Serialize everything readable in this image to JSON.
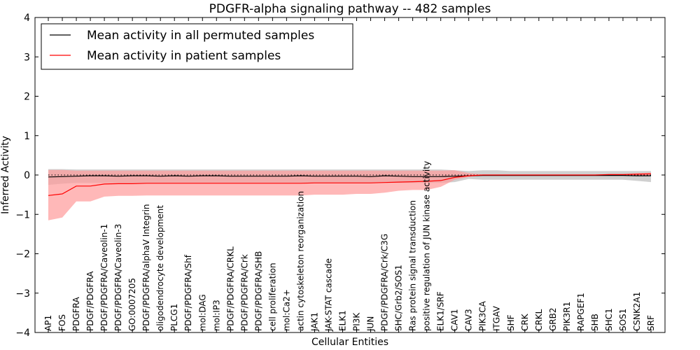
{
  "chart_data": {
    "type": "line",
    "title": "PDGFR-alpha signaling pathway -- 482 samples",
    "xlabel": "Cellular Entities",
    "ylabel": "Inferred Activity",
    "ylim": [
      -4,
      4
    ],
    "yticks": [
      -4,
      -3,
      -2,
      -1,
      0,
      1,
      2,
      3,
      4
    ],
    "ytick_labels": [
      "−4",
      "−3",
      "−2",
      "−1",
      "0",
      "1",
      "2",
      "3",
      "4"
    ],
    "grid": false,
    "legend_position": "top-left",
    "reference_line": {
      "y": 0,
      "style": "dotted"
    },
    "categories": [
      "AP1",
      "FOS",
      "PDGFRA",
      "PDGF/PDGFRA",
      "PDGF/PDGFRA/Caveolin-1",
      "PDGF/PDGFRA/Caveolin-3",
      "GO:0007205",
      "PDGF/PDGFRA/alphaV Integrin",
      "oligodendrocyte development",
      "PLCG1",
      "PDGF/PDGFRA/Shf",
      "mol:DAG",
      "mol:IP3",
      "PDGF/PDGFRA/CRKL",
      "PDGF/PDGFRA/Crk",
      "PDGF/PDGFRA/SHB",
      "cell proliferation",
      "mol:Ca2+",
      "actin cytoskeleton reorganization",
      "JAK1",
      "JAK-STAT cascade",
      "ELK1",
      "PI3K",
      "JUN",
      "PDGF/PDGFRA/Crk/C3G",
      "SHC/Grb2/SOS1",
      "Ras protein signal transduction",
      "positive regulation of JUN kinase activity",
      "ELK1/SRF",
      "CAV1",
      "CAV3",
      "PIK3CA",
      "ITGAV",
      "SHF",
      "CRK",
      "CRKL",
      "GRB2",
      "PIK3R1",
      "RAPGEF1",
      "SHB",
      "SHC1",
      "SOS1",
      "CSNK2A1",
      "SRF"
    ],
    "series": [
      {
        "name": "Mean activity in all permuted samples",
        "color": "#000000",
        "band_color": "#b0b0b0",
        "values": [
          -0.05,
          -0.04,
          -0.03,
          -0.02,
          -0.02,
          -0.03,
          -0.02,
          -0.02,
          -0.03,
          -0.02,
          -0.03,
          -0.02,
          -0.02,
          -0.03,
          -0.03,
          -0.03,
          -0.03,
          -0.03,
          -0.02,
          -0.03,
          -0.03,
          -0.03,
          -0.03,
          -0.04,
          -0.02,
          -0.03,
          -0.04,
          -0.04,
          -0.04,
          -0.03,
          -0.02,
          -0.01,
          -0.01,
          -0.01,
          -0.01,
          -0.01,
          -0.01,
          -0.01,
          -0.01,
          -0.01,
          -0.01,
          -0.01,
          -0.02,
          -0.02
        ],
        "lower": [
          -0.25,
          -0.22,
          -0.2,
          -0.2,
          -0.2,
          -0.2,
          -0.2,
          -0.2,
          -0.2,
          -0.2,
          -0.2,
          -0.2,
          -0.2,
          -0.2,
          -0.2,
          -0.2,
          -0.2,
          -0.2,
          -0.2,
          -0.2,
          -0.2,
          -0.2,
          -0.2,
          -0.2,
          -0.2,
          -0.2,
          -0.2,
          -0.2,
          -0.2,
          -0.18,
          -0.1,
          -0.12,
          -0.12,
          -0.12,
          -0.12,
          -0.12,
          -0.12,
          -0.12,
          -0.12,
          -0.12,
          -0.12,
          -0.12,
          -0.15,
          -0.18
        ],
        "upper": [
          0.15,
          0.15,
          0.14,
          0.14,
          0.14,
          0.14,
          0.14,
          0.14,
          0.14,
          0.14,
          0.14,
          0.14,
          0.14,
          0.14,
          0.14,
          0.14,
          0.14,
          0.14,
          0.14,
          0.14,
          0.14,
          0.14,
          0.14,
          0.14,
          0.14,
          0.14,
          0.14,
          0.14,
          0.14,
          0.12,
          0.1,
          0.12,
          0.12,
          0.1,
          0.1,
          0.1,
          0.1,
          0.1,
          0.1,
          0.1,
          0.1,
          0.1,
          0.1,
          0.1
        ]
      },
      {
        "name": "Mean activity in patient samples",
        "color": "#ff0000",
        "band_color": "#ff9a9a",
        "values": [
          -0.52,
          -0.48,
          -0.28,
          -0.28,
          -0.23,
          -0.22,
          -0.22,
          -0.21,
          -0.21,
          -0.21,
          -0.21,
          -0.21,
          -0.21,
          -0.21,
          -0.21,
          -0.21,
          -0.21,
          -0.21,
          -0.21,
          -0.2,
          -0.2,
          -0.2,
          -0.2,
          -0.2,
          -0.19,
          -0.18,
          -0.17,
          -0.16,
          -0.14,
          -0.06,
          -0.02,
          0.0,
          0.0,
          0.0,
          0.0,
          0.0,
          0.0,
          0.0,
          0.0,
          0.0,
          0.01,
          0.01,
          0.02,
          0.03
        ],
        "lower": [
          -1.15,
          -1.08,
          -0.67,
          -0.67,
          -0.55,
          -0.53,
          -0.53,
          -0.52,
          -0.52,
          -0.52,
          -0.52,
          -0.52,
          -0.52,
          -0.52,
          -0.52,
          -0.52,
          -0.52,
          -0.52,
          -0.52,
          -0.5,
          -0.5,
          -0.5,
          -0.48,
          -0.48,
          -0.45,
          -0.4,
          -0.38,
          -0.38,
          -0.3,
          -0.12,
          -0.05,
          -0.01,
          -0.01,
          -0.01,
          -0.01,
          -0.01,
          -0.01,
          -0.01,
          -0.01,
          -0.01,
          -0.01,
          -0.01,
          -0.01,
          -0.01
        ],
        "upper": [
          0.13,
          0.13,
          0.11,
          0.11,
          0.11,
          0.11,
          0.11,
          0.11,
          0.11,
          0.11,
          0.11,
          0.11,
          0.11,
          0.11,
          0.11,
          0.11,
          0.11,
          0.11,
          0.11,
          0.11,
          0.11,
          0.11,
          0.11,
          0.11,
          0.11,
          0.11,
          0.11,
          0.11,
          0.11,
          0.12,
          0.05,
          0.01,
          0.01,
          0.01,
          0.01,
          0.01,
          0.01,
          0.01,
          0.01,
          0.01,
          0.02,
          0.02,
          0.05,
          0.06
        ]
      }
    ]
  }
}
